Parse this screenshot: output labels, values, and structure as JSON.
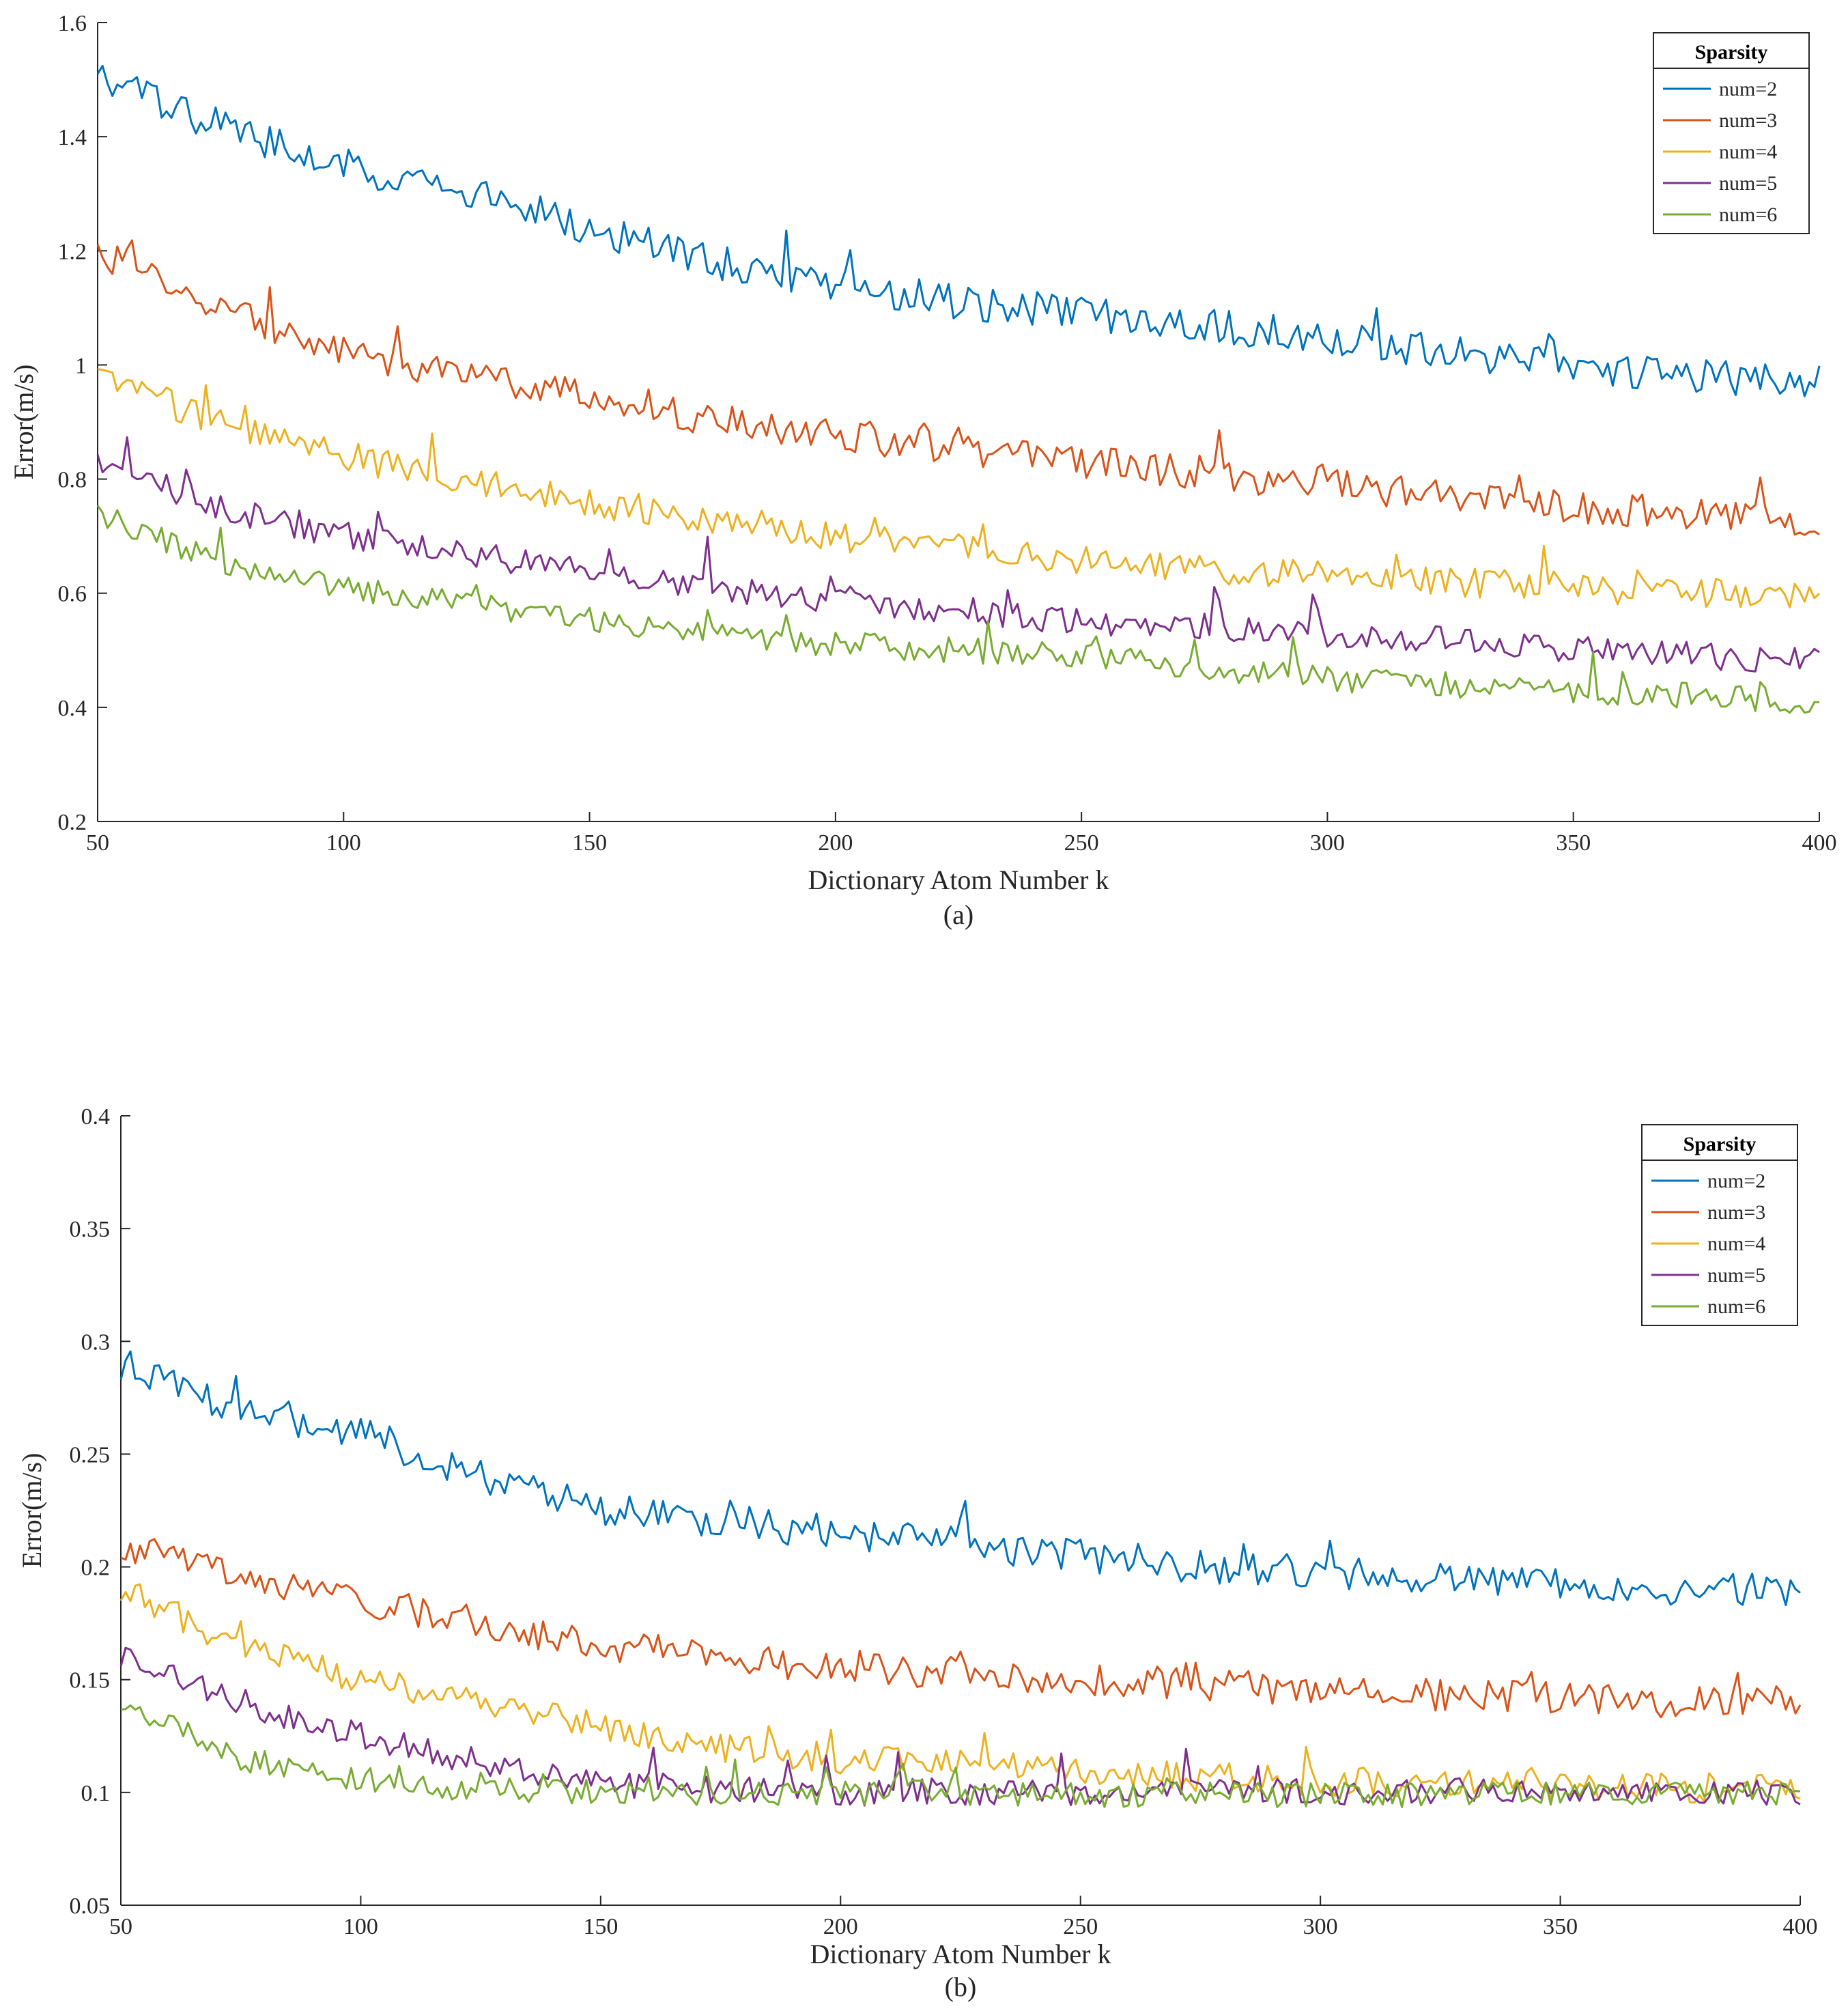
{
  "chart_data": [
    {
      "type": "line",
      "caption": "(a)",
      "xlabel": "Dictionary Atom Number k",
      "ylabel": "Error(m/s)",
      "xlim": [
        50,
        400
      ],
      "ylim": [
        0.2,
        1.6
      ],
      "xticks": [
        50,
        100,
        150,
        200,
        250,
        300,
        350,
        400
      ],
      "yticks": [
        0.2,
        0.4,
        0.6,
        0.8,
        1,
        1.2,
        1.4,
        1.6
      ],
      "ytick_labels": [
        "0.2",
        "0.4",
        "0.6",
        "0.8",
        "1",
        "1.2",
        "1.4",
        "1.6"
      ],
      "legend_title": "Sparsity",
      "legend_position": "top-right",
      "x": [
        50,
        75,
        100,
        125,
        150,
        175,
        200,
        225,
        250,
        275,
        300,
        325,
        350,
        375,
        400
      ],
      "series": [
        {
          "name": "num=2",
          "color": "#0072BD",
          "values": [
            1.5,
            1.42,
            1.35,
            1.3,
            1.24,
            1.18,
            1.14,
            1.11,
            1.09,
            1.07,
            1.05,
            1.02,
            1.0,
            0.98,
            0.97
          ]
        },
        {
          "name": "num=3",
          "color": "#D95319",
          "values": [
            1.2,
            1.1,
            1.02,
            0.98,
            0.95,
            0.9,
            0.88,
            0.85,
            0.83,
            0.81,
            0.79,
            0.77,
            0.75,
            0.74,
            0.72
          ]
        },
        {
          "name": "num=4",
          "color": "#EDB120",
          "values": [
            0.98,
            0.9,
            0.84,
            0.8,
            0.76,
            0.73,
            0.7,
            0.68,
            0.66,
            0.64,
            0.63,
            0.62,
            0.61,
            0.6,
            0.6
          ]
        },
        {
          "name": "num=5",
          "color": "#7E2F8E",
          "values": [
            0.83,
            0.75,
            0.7,
            0.67,
            0.64,
            0.61,
            0.59,
            0.57,
            0.55,
            0.54,
            0.53,
            0.52,
            0.5,
            0.49,
            0.48
          ]
        },
        {
          "name": "num=6",
          "color": "#77AC30",
          "values": [
            0.74,
            0.65,
            0.61,
            0.58,
            0.55,
            0.53,
            0.51,
            0.5,
            0.49,
            0.47,
            0.45,
            0.44,
            0.43,
            0.42,
            0.41
          ]
        }
      ]
    },
    {
      "type": "line",
      "caption": "(b)",
      "xlabel": "Dictionary Atom Number k",
      "ylabel": "Error(m/s)",
      "xlim": [
        50,
        400
      ],
      "ylim": [
        0.05,
        0.4
      ],
      "xticks": [
        50,
        100,
        150,
        200,
        250,
        300,
        350,
        400
      ],
      "yticks": [
        0.05,
        0.1,
        0.15,
        0.2,
        0.25,
        0.3,
        0.35,
        0.4
      ],
      "ytick_labels": [
        "0.05",
        "0.1",
        "0.15",
        "0.2",
        "0.25",
        "0.3",
        "0.35",
        "0.4"
      ],
      "legend_title": "Sparsity",
      "legend_position": "top-right",
      "x": [
        50,
        75,
        100,
        125,
        150,
        175,
        200,
        225,
        250,
        275,
        300,
        325,
        350,
        375,
        400
      ],
      "series": [
        {
          "name": "num=2",
          "color": "#0072BD",
          "values": [
            0.29,
            0.27,
            0.26,
            0.24,
            0.225,
            0.22,
            0.215,
            0.21,
            0.205,
            0.2,
            0.198,
            0.195,
            0.193,
            0.19,
            0.19
          ]
        },
        {
          "name": "num=3",
          "color": "#D95319",
          "values": [
            0.21,
            0.195,
            0.185,
            0.175,
            0.165,
            0.16,
            0.155,
            0.153,
            0.15,
            0.148,
            0.145,
            0.143,
            0.142,
            0.14,
            0.14
          ]
        },
        {
          "name": "num=4",
          "color": "#EDB120",
          "values": [
            0.19,
            0.165,
            0.15,
            0.14,
            0.13,
            0.12,
            0.115,
            0.112,
            0.11,
            0.107,
            0.105,
            0.104,
            0.103,
            0.102,
            0.102
          ]
        },
        {
          "name": "num=5",
          "color": "#7E2F8E",
          "values": [
            0.16,
            0.14,
            0.125,
            0.113,
            0.104,
            0.101,
            0.1,
            0.1,
            0.1,
            0.1,
            0.1,
            0.1,
            0.1,
            0.1,
            0.1
          ]
        },
        {
          "name": "num=6",
          "color": "#77AC30",
          "values": [
            0.14,
            0.115,
            0.106,
            0.101,
            0.1,
            0.1,
            0.1,
            0.1,
            0.099,
            0.099,
            0.099,
            0.099,
            0.099,
            0.099,
            0.099
          ]
        }
      ]
    }
  ]
}
